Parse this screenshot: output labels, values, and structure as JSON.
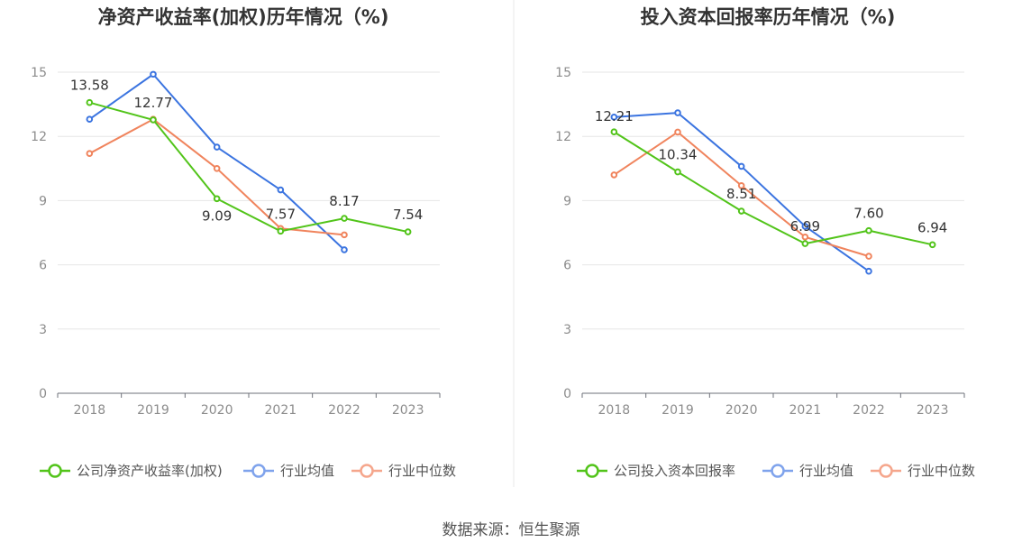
{
  "colors": {
    "company": "#52c41a",
    "industry_avg": "#3b74e0",
    "industry_median": "#f0845d",
    "industry_avg_legend": "#7fa3ec",
    "industry_median_legend": "#f5a68c"
  },
  "source": "数据来源：恒生聚源",
  "chart_data": [
    {
      "type": "line",
      "title": "净资产收益率(加权)历年情况（%)",
      "categories": [
        "2018",
        "2019",
        "2020",
        "2021",
        "2022",
        "2023"
      ],
      "ylim": [
        0,
        15
      ],
      "yticks": [
        "0",
        "3",
        "6",
        "9",
        "12",
        "15"
      ],
      "ytick_values": [
        0,
        3,
        6,
        9,
        12,
        15
      ],
      "series": [
        {
          "name": "公司净资产收益率(加权)",
          "key": "company",
          "values": [
            13.58,
            12.77,
            9.09,
            7.57,
            8.17,
            7.54
          ],
          "labels": [
            "13.58",
            "12.77",
            "9.09",
            "7.57",
            "8.17",
            "7.54"
          ]
        },
        {
          "name": "行业均值",
          "key": "industry_avg",
          "values": [
            12.8,
            14.9,
            11.5,
            9.5,
            6.7,
            null
          ]
        },
        {
          "name": "行业中位数",
          "key": "industry_median",
          "values": [
            11.2,
            12.8,
            10.5,
            7.7,
            7.4,
            null
          ]
        }
      ]
    },
    {
      "type": "line",
      "title": "投入资本回报率历年情况（%)",
      "categories": [
        "2018",
        "2019",
        "2020",
        "2021",
        "2022",
        "2023"
      ],
      "ylim": [
        0,
        15
      ],
      "yticks": [
        "0",
        "3",
        "6",
        "9",
        "12",
        "15"
      ],
      "ytick_values": [
        0,
        3,
        6,
        9,
        12,
        15
      ],
      "series": [
        {
          "name": "公司投入资本回报率",
          "key": "company",
          "values": [
            12.21,
            10.34,
            8.51,
            6.99,
            7.6,
            6.94
          ],
          "labels": [
            "12.21",
            "10.34",
            "8.51",
            "6.99",
            "7.60",
            "6.94"
          ]
        },
        {
          "name": "行业均值",
          "key": "industry_avg",
          "values": [
            12.9,
            13.1,
            10.6,
            7.8,
            5.7,
            null
          ]
        },
        {
          "name": "行业中位数",
          "key": "industry_median",
          "values": [
            10.2,
            12.2,
            9.7,
            7.3,
            6.4,
            null
          ]
        }
      ]
    }
  ]
}
